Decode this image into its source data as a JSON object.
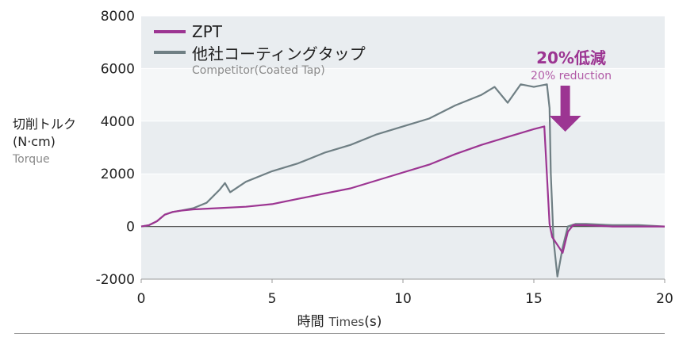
{
  "chart_data": {
    "type": "line",
    "xlim": [
      0,
      20
    ],
    "ylim": [
      -2000,
      8000
    ],
    "x_ticks": [
      "0",
      "5",
      "10",
      "15",
      "20"
    ],
    "y_ticks": [
      "8000",
      "6000",
      "4000",
      "2000",
      "0",
      "-2000"
    ],
    "ylabel_jp": "切削トルク",
    "ylabel_unit": "(N·cm)",
    "ylabel_en": "Torque",
    "xlabel_jp": "時間",
    "xlabel_en": "Times",
    "xlabel_unit": "(s)",
    "series": [
      {
        "name": "ZPT",
        "color": "#9c3592",
        "x": [
          0,
          0.3,
          0.6,
          0.9,
          1.2,
          1.5,
          2,
          3,
          4,
          5,
          6,
          7,
          8,
          9,
          10,
          11,
          12,
          13,
          14,
          15,
          15.4,
          15.6,
          15.7,
          15.9,
          16.1,
          16.3,
          16.5,
          17,
          18,
          19,
          20
        ],
        "y": [
          0,
          50,
          200,
          450,
          550,
          600,
          650,
          700,
          750,
          850,
          1050,
          1250,
          1450,
          1750,
          2050,
          2350,
          2750,
          3100,
          3400,
          3700,
          3800,
          100,
          -400,
          -700,
          -1000,
          -200,
          50,
          50,
          0,
          0,
          0
        ]
      },
      {
        "name": "他社コーティングタップ",
        "name_sub": "Competitor(Coated Tap)",
        "color": "#6f7f84",
        "x": [
          0,
          0.3,
          0.6,
          0.9,
          1.2,
          1.5,
          2,
          2.5,
          3,
          3.2,
          3.4,
          4,
          5,
          6,
          7,
          8,
          9,
          10,
          11,
          12,
          13,
          13.5,
          14,
          14.5,
          15,
          15.5,
          15.6,
          15.65,
          15.75,
          15.9,
          16.1,
          16.3,
          16.6,
          17,
          18,
          19,
          20
        ],
        "y": [
          0,
          50,
          200,
          450,
          550,
          600,
          700,
          900,
          1400,
          1650,
          1300,
          1700,
          2100,
          2400,
          2800,
          3100,
          3500,
          3800,
          4100,
          4600,
          5000,
          5300,
          4700,
          5400,
          5300,
          5400,
          4500,
          2000,
          -500,
          -1900,
          -800,
          0,
          100,
          100,
          50,
          50,
          0
        ]
      }
    ],
    "annotation": {
      "title": "20%低減",
      "subtitle": "20% reduction",
      "color": "#9c3592"
    },
    "grid": "horizontal bands"
  }
}
